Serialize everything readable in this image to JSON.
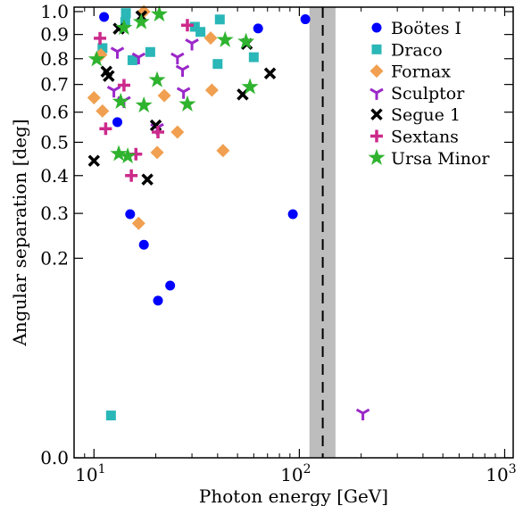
{
  "chart_data": {
    "type": "scatter",
    "xlabel": "Photon energy [GeV]",
    "ylabel": "Angular separation [deg]",
    "xscale": "log",
    "xlim": [
      8,
      1100
    ],
    "yscale": "square-root (tick positions proportional to sqrt of value)",
    "ylim": [
      0,
      1.02
    ],
    "x_ticks": [
      {
        "value": 10,
        "base": "10",
        "exp": "1"
      },
      {
        "value": 100,
        "base": "10",
        "exp": "2"
      },
      {
        "value": 1000,
        "base": "10",
        "exp": "3"
      }
    ],
    "y_ticks": [
      {
        "value": 0.0,
        "label": "0.0"
      },
      {
        "value": 0.2,
        "label": "0.2"
      },
      {
        "value": 0.3,
        "label": "0.3"
      },
      {
        "value": 0.4,
        "label": "0.4"
      },
      {
        "value": 0.5,
        "label": "0.5"
      },
      {
        "value": 0.6,
        "label": "0.6"
      },
      {
        "value": 0.7,
        "label": "0.7"
      },
      {
        "value": 0.8,
        "label": "0.8"
      },
      {
        "value": 0.9,
        "label": "0.9"
      },
      {
        "value": 1.0,
        "label": "1.0"
      }
    ],
    "vertical_line": {
      "x": 130,
      "band": [
        112,
        150
      ],
      "line_style": "dashed",
      "band_color": "#bdbdbd"
    },
    "legend_position": "top-right",
    "series": [
      {
        "name": "Boötes I",
        "marker": "circle",
        "color": "#0000ff",
        "points": [
          [
            11.2,
            0.976
          ],
          [
            13.0,
            0.566
          ],
          [
            15.0,
            0.298
          ],
          [
            17.5,
            0.228
          ],
          [
            20.5,
            0.124
          ],
          [
            23.5,
            0.149
          ],
          [
            63,
            0.926
          ],
          [
            93,
            0.298
          ],
          [
            107,
            0.966
          ]
        ]
      },
      {
        "name": "Draco",
        "marker": "square",
        "color": "#2ab7b7",
        "points": [
          [
            11.0,
            0.843
          ],
          [
            12.1,
            0.009
          ],
          [
            14.3,
            0.993
          ],
          [
            14.2,
            0.954
          ],
          [
            15.4,
            0.794
          ],
          [
            18.8,
            0.827
          ],
          [
            31,
            0.933
          ],
          [
            33,
            0.911
          ],
          [
            40,
            0.779
          ],
          [
            41,
            0.965
          ],
          [
            60,
            0.806
          ]
        ]
      },
      {
        "name": "Fornax",
        "marker": "diamond",
        "color": "#f0a050",
        "points": [
          [
            10.0,
            0.651
          ],
          [
            10.8,
            0.816
          ],
          [
            11.0,
            0.604
          ],
          [
            16.5,
            0.276
          ],
          [
            17.5,
            1.0
          ],
          [
            20.3,
            0.468
          ],
          [
            22.0,
            0.659
          ],
          [
            25.5,
            0.533
          ],
          [
            37,
            0.885
          ],
          [
            37.5,
            0.679
          ],
          [
            42.5,
            0.474
          ]
        ]
      },
      {
        "name": "Sculptor",
        "marker": "tri_down",
        "color": "#9a27c8",
        "points": [
          [
            12.5,
            0.678
          ],
          [
            13.0,
            0.829
          ],
          [
            14.0,
            0.64
          ],
          [
            16.5,
            0.806
          ],
          [
            20.3,
            0.547
          ],
          [
            25.5,
            0.806
          ],
          [
            27.0,
            0.757
          ],
          [
            27.3,
            0.673
          ],
          [
            30.0,
            0.863
          ],
          [
            204,
            0.01
          ]
        ]
      },
      {
        "name": "Segue 1",
        "marker": "x",
        "color": "#000000",
        "points": [
          [
            10.0,
            0.443
          ],
          [
            11.5,
            0.749
          ],
          [
            11.8,
            0.732
          ],
          [
            13.2,
            0.925
          ],
          [
            17.0,
            0.979
          ],
          [
            18.2,
            0.389
          ],
          [
            20.0,
            0.555
          ],
          [
            53,
            0.663
          ],
          [
            55.5,
            0.86
          ],
          [
            72,
            0.742
          ]
        ]
      },
      {
        "name": "Sextans",
        "marker": "plus",
        "color": "#cc2a8c",
        "points": [
          [
            10.7,
            0.884
          ],
          [
            11.4,
            0.544
          ],
          [
            14.0,
            0.697
          ],
          [
            15.2,
            0.4
          ],
          [
            16.0,
            0.463
          ],
          [
            20.5,
            0.533
          ],
          [
            28.5,
            0.94
          ]
        ]
      },
      {
        "name": "Ursa Minor",
        "marker": "star",
        "color": "#2fb32f",
        "points": [
          [
            10.3,
            0.798
          ],
          [
            13.2,
            0.464
          ],
          [
            13.5,
            0.637
          ],
          [
            14.0,
            0.929
          ],
          [
            14.6,
            0.457
          ],
          [
            17.0,
            0.954
          ],
          [
            17.5,
            0.624
          ],
          [
            20.3,
            0.717
          ],
          [
            20.8,
            0.988
          ],
          [
            28.5,
            0.628
          ],
          [
            43.5,
            0.877
          ],
          [
            55,
            0.87
          ],
          [
            57.5,
            0.691
          ]
        ]
      }
    ]
  }
}
